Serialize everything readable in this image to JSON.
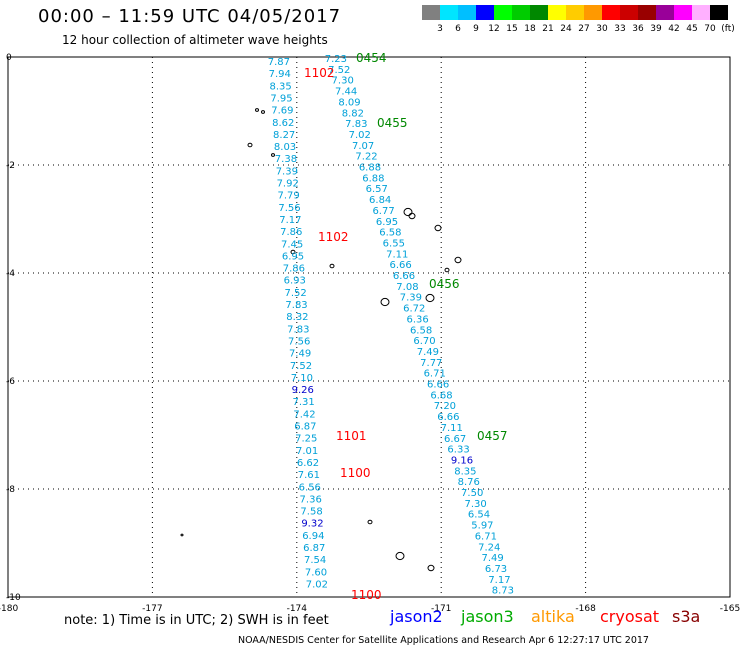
{
  "header": {
    "title": "00:00 – 11:59 UTC 04/05/2017",
    "subtitle": "12 hour collection of altimeter wave heights"
  },
  "colorbar": {
    "colors": [
      "#808080",
      "#00e5ff",
      "#00bfff",
      "#0000ff",
      "#00ff00",
      "#00cc00",
      "#008800",
      "#ffff00",
      "#ffcc00",
      "#ff9900",
      "#ff0000",
      "#cc0000",
      "#990000",
      "#990099",
      "#ff00ff",
      "#ffb0ff",
      "#000000"
    ],
    "labels": [
      "3",
      "6",
      "9",
      "12",
      "15",
      "18",
      "21",
      "24",
      "27",
      "30",
      "33",
      "36",
      "39",
      "42",
      "45",
      "70",
      "(ft)"
    ]
  },
  "axes": {
    "x_ticks": [
      "-180",
      "-177",
      "-174",
      "-171",
      "-168",
      "-165"
    ],
    "y_ticks": [
      "0",
      "-2",
      "-4",
      "-6",
      "-8",
      "-10"
    ]
  },
  "colors": {
    "cyan": "#00a0d8",
    "blue": "#0000cc",
    "red": "#ff0000",
    "green": "#008800"
  },
  "track_west": [
    {
      "t": "7.87",
      "c": "cyan"
    },
    {
      "t": "7.94",
      "c": "cyan"
    },
    {
      "t": "8.35",
      "c": "cyan"
    },
    {
      "t": "7.95",
      "c": "cyan"
    },
    {
      "t": "7.69",
      "c": "cyan"
    },
    {
      "t": "8.62",
      "c": "cyan"
    },
    {
      "t": "8.27",
      "c": "cyan"
    },
    {
      "t": "8.03",
      "c": "cyan"
    },
    {
      "t": "7.38",
      "c": "cyan"
    },
    {
      "t": "7.39",
      "c": "cyan"
    },
    {
      "t": "7.92",
      "c": "cyan"
    },
    {
      "t": "7.79",
      "c": "cyan"
    },
    {
      "t": "7.56",
      "c": "cyan"
    },
    {
      "t": "7.17",
      "c": "cyan"
    },
    {
      "t": "7.86",
      "c": "cyan"
    },
    {
      "t": "7.45",
      "c": "cyan"
    },
    {
      "t": "6.95",
      "c": "cyan"
    },
    {
      "t": "7.86",
      "c": "cyan"
    },
    {
      "t": "6.93",
      "c": "cyan"
    },
    {
      "t": "7.52",
      "c": "cyan"
    },
    {
      "t": "7.83",
      "c": "cyan"
    },
    {
      "t": "8.32",
      "c": "cyan"
    },
    {
      "t": "7.83",
      "c": "cyan"
    },
    {
      "t": "7.56",
      "c": "cyan"
    },
    {
      "t": "7.49",
      "c": "cyan"
    },
    {
      "t": "7.52",
      "c": "cyan"
    },
    {
      "t": "7.10",
      "c": "cyan"
    },
    {
      "t": "9.26",
      "c": "blue"
    },
    {
      "t": "7.31",
      "c": "cyan"
    },
    {
      "t": "7.42",
      "c": "cyan"
    },
    {
      "t": "6.87",
      "c": "cyan"
    },
    {
      "t": "7.25",
      "c": "cyan"
    },
    {
      "t": "7.01",
      "c": "cyan"
    },
    {
      "t": "6.62",
      "c": "cyan"
    },
    {
      "t": "7.61",
      "c": "cyan"
    },
    {
      "t": "6.56",
      "c": "cyan"
    },
    {
      "t": "7.36",
      "c": "cyan"
    },
    {
      "t": "7.58",
      "c": "cyan"
    },
    {
      "t": "9.32",
      "c": "blue"
    },
    {
      "t": "6.94",
      "c": "cyan"
    },
    {
      "t": "6.87",
      "c": "cyan"
    },
    {
      "t": "7.54",
      "c": "cyan"
    },
    {
      "t": "7.60",
      "c": "cyan"
    },
    {
      "t": "7.02",
      "c": "cyan"
    }
  ],
  "track_east": [
    {
      "t": "7.23",
      "c": "cyan"
    },
    {
      "t": "7.52",
      "c": "cyan"
    },
    {
      "t": "7.30",
      "c": "cyan"
    },
    {
      "t": "7.44",
      "c": "cyan"
    },
    {
      "t": "8.09",
      "c": "cyan"
    },
    {
      "t": "8.82",
      "c": "cyan"
    },
    {
      "t": "7.83",
      "c": "cyan"
    },
    {
      "t": "7.02",
      "c": "cyan"
    },
    {
      "t": "7.07",
      "c": "cyan"
    },
    {
      "t": "7.22",
      "c": "cyan"
    },
    {
      "t": "6.88",
      "c": "cyan"
    },
    {
      "t": "6.88",
      "c": "cyan"
    },
    {
      "t": "6.57",
      "c": "cyan"
    },
    {
      "t": "6.84",
      "c": "cyan"
    },
    {
      "t": "6.77",
      "c": "cyan"
    },
    {
      "t": "6.95",
      "c": "cyan"
    },
    {
      "t": "6.58",
      "c": "cyan"
    },
    {
      "t": "6.55",
      "c": "cyan"
    },
    {
      "t": "7.11",
      "c": "cyan"
    },
    {
      "t": "6.66",
      "c": "cyan"
    },
    {
      "t": "6.66",
      "c": "cyan"
    },
    {
      "t": "7.08",
      "c": "cyan"
    },
    {
      "t": "7.39",
      "c": "cyan"
    },
    {
      "t": "6.72",
      "c": "cyan"
    },
    {
      "t": "6.36",
      "c": "cyan"
    },
    {
      "t": "6.58",
      "c": "cyan"
    },
    {
      "t": "6.70",
      "c": "cyan"
    },
    {
      "t": "7.49",
      "c": "cyan"
    },
    {
      "t": "7.77",
      "c": "cyan"
    },
    {
      "t": "6.71",
      "c": "cyan"
    },
    {
      "t": "6.66",
      "c": "cyan"
    },
    {
      "t": "6.68",
      "c": "cyan"
    },
    {
      "t": "7.20",
      "c": "cyan"
    },
    {
      "t": "6.66",
      "c": "cyan"
    },
    {
      "t": "7.11",
      "c": "cyan"
    },
    {
      "t": "6.67",
      "c": "cyan"
    },
    {
      "t": "6.33",
      "c": "cyan"
    },
    {
      "t": "9.16",
      "c": "blue"
    },
    {
      "t": "8.35",
      "c": "cyan"
    },
    {
      "t": "8.76",
      "c": "cyan"
    },
    {
      "t": "7.50",
      "c": "cyan"
    },
    {
      "t": "7.30",
      "c": "cyan"
    },
    {
      "t": "6.54",
      "c": "cyan"
    },
    {
      "t": "5.97",
      "c": "cyan"
    },
    {
      "t": "6.71",
      "c": "cyan"
    },
    {
      "t": "7.24",
      "c": "cyan"
    },
    {
      "t": "7.49",
      "c": "cyan"
    },
    {
      "t": "6.73",
      "c": "cyan"
    },
    {
      "t": "7.17",
      "c": "cyan"
    },
    {
      "t": "8.73",
      "c": "cyan"
    }
  ],
  "time_labels": [
    {
      "t": "0454",
      "c": "green"
    },
    {
      "t": "1102",
      "c": "red"
    },
    {
      "t": "0455",
      "c": "green"
    },
    {
      "t": "1102",
      "c": "red"
    },
    {
      "t": "0456",
      "c": "green"
    },
    {
      "t": "1101",
      "c": "red"
    },
    {
      "t": "0457",
      "c": "green"
    },
    {
      "t": "1100",
      "c": "red"
    },
    {
      "t": "1100",
      "c": "red"
    }
  ],
  "note": "note:  1) Time is in UTC;  2) SWH is in feet",
  "satellites": [
    {
      "name": "jason2",
      "color": "#0000ff"
    },
    {
      "name": "jason3",
      "color": "#00aa00"
    },
    {
      "name": "altika",
      "color": "#ff9900"
    },
    {
      "name": "cryosat",
      "color": "#ff0000"
    },
    {
      "name": "s3a",
      "color": "#880000"
    }
  ],
  "footer": "NOAA/NESDIS Center for Satellite Applications and Research     Apr  6 12:27:17 UTC 2017"
}
